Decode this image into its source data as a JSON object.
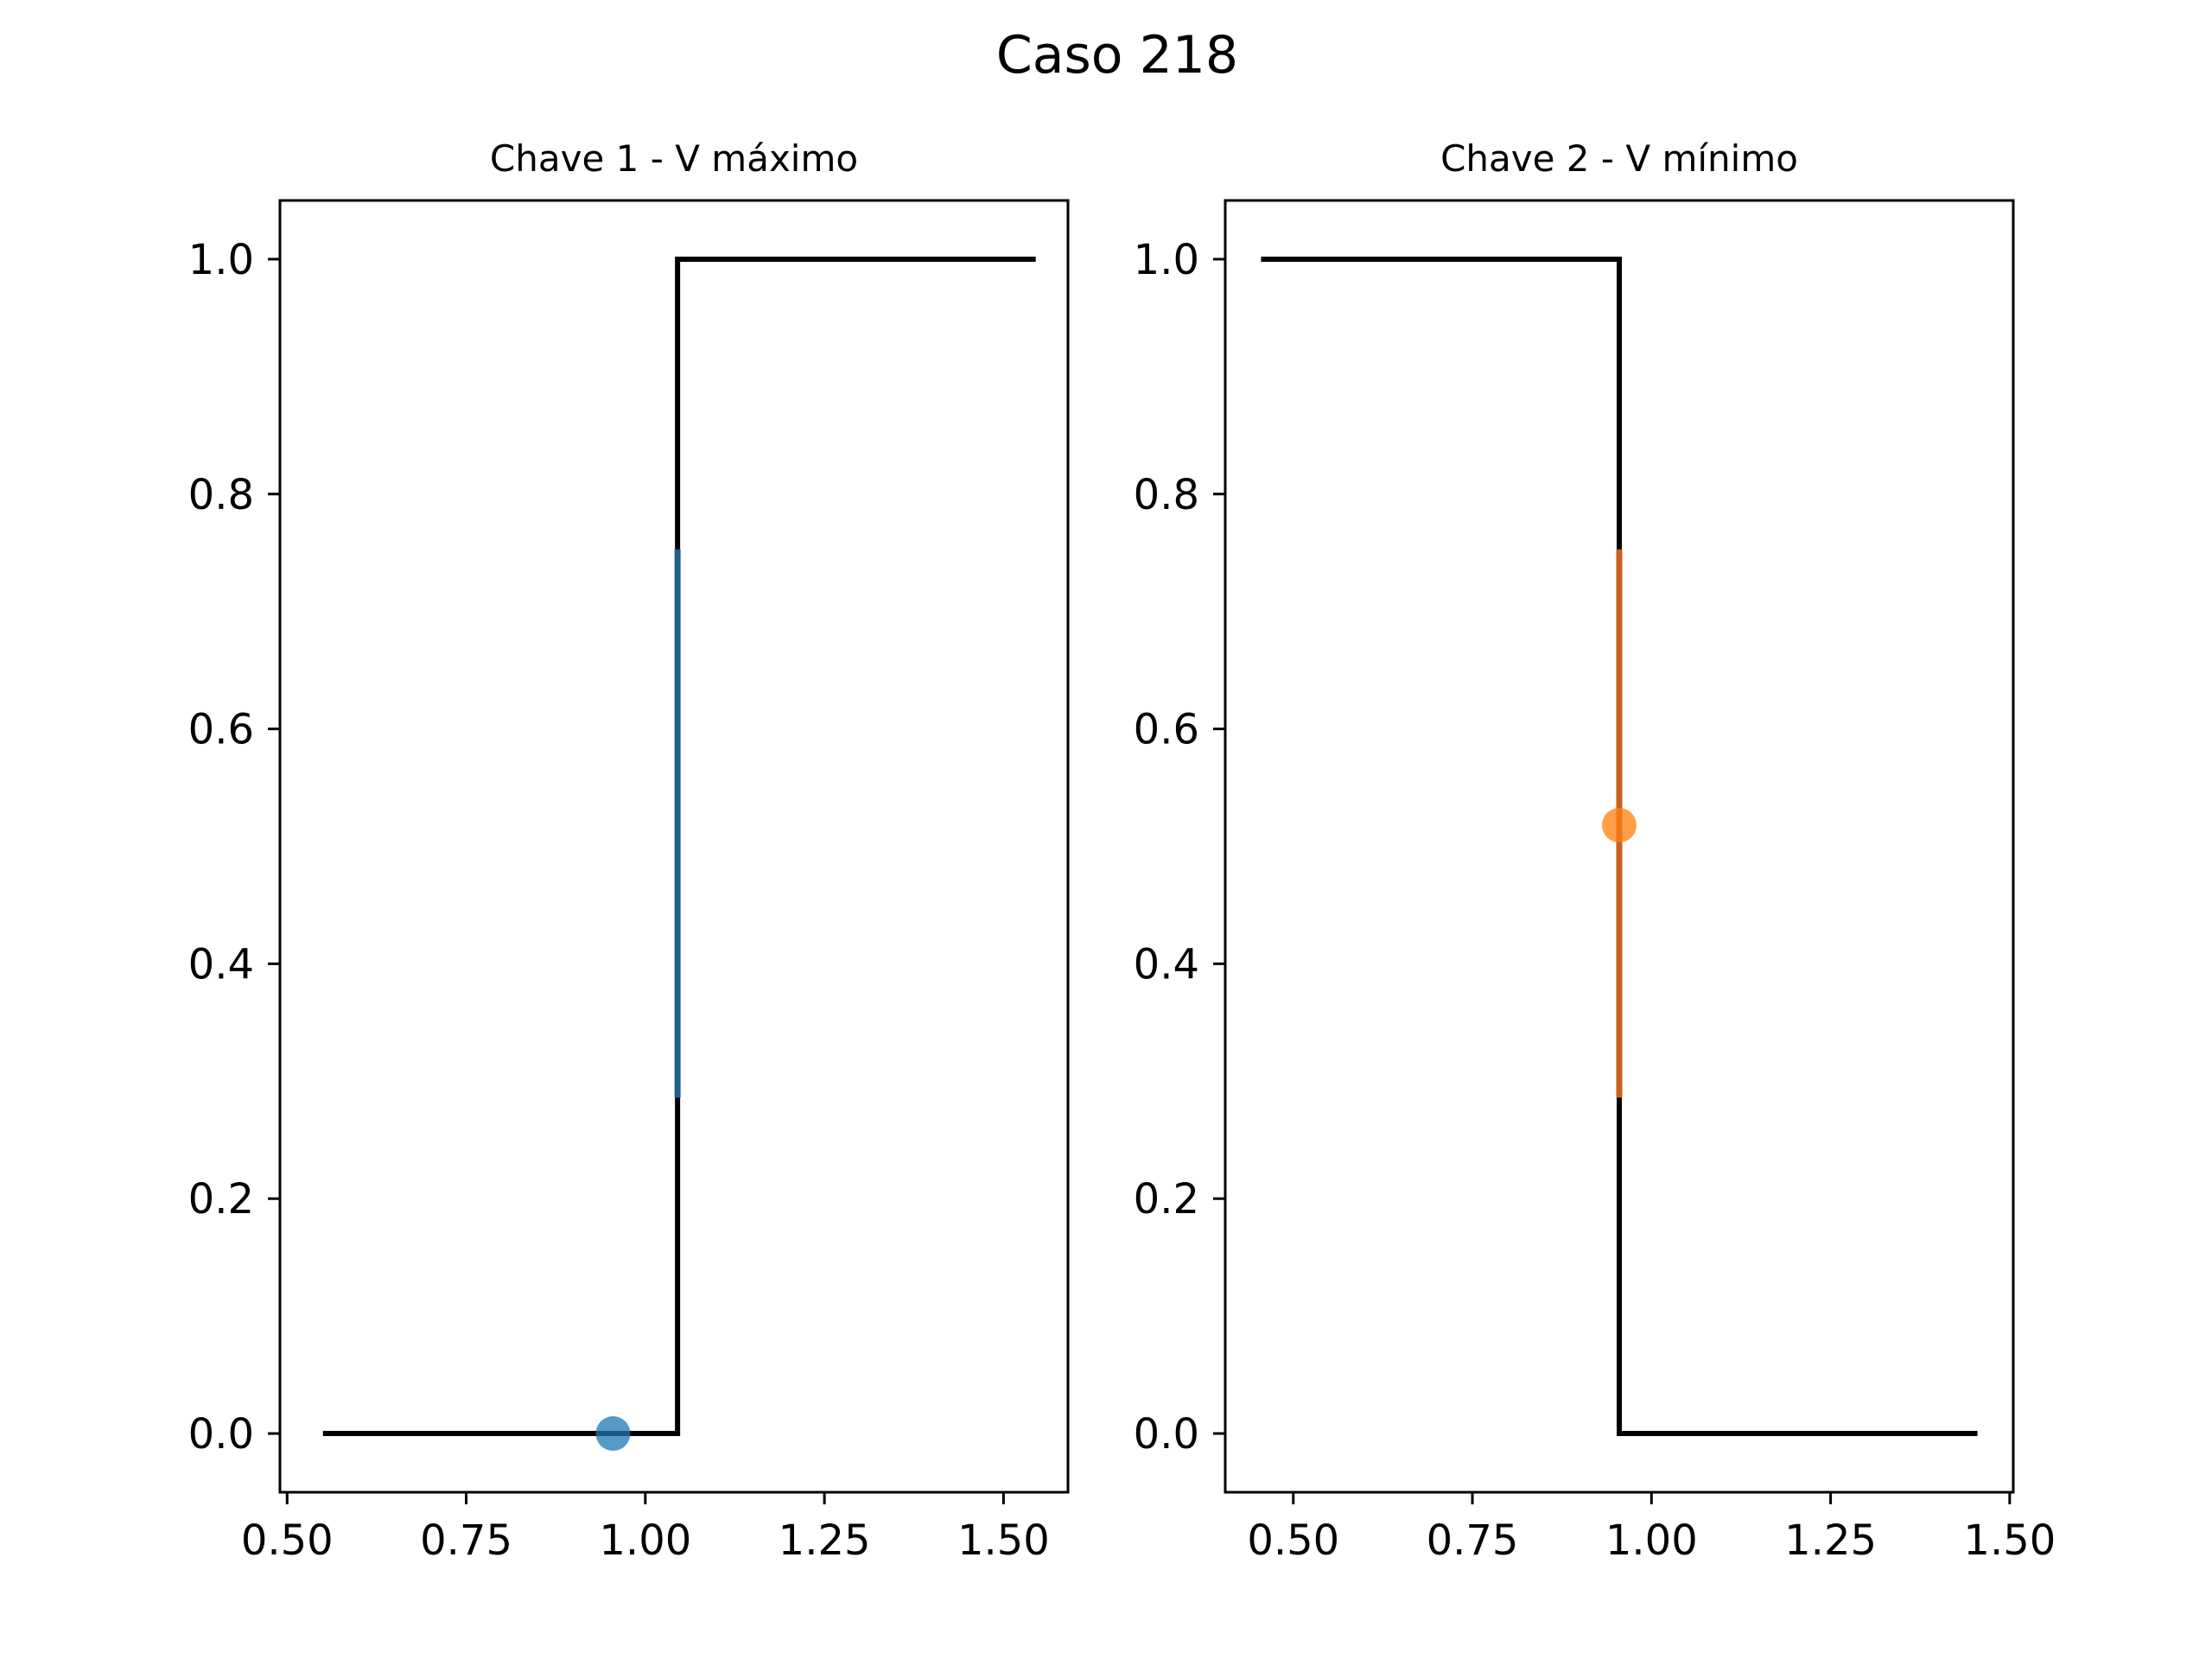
{
  "figure": {
    "title": "Caso 218"
  },
  "chart_data": [
    {
      "type": "line",
      "title": "Chave 1 - V máximo",
      "xlabel": "",
      "ylabel": "",
      "xlim": [
        0.49,
        1.59
      ],
      "ylim": [
        -0.05,
        1.05
      ],
      "xticks": [
        0.5,
        0.75,
        1.0,
        1.25,
        1.5
      ],
      "xtick_labels": [
        "0.50",
        "0.75",
        "1.00",
        "1.25",
        "1.50"
      ],
      "yticks": [
        0.0,
        0.2,
        0.4,
        0.6,
        0.8,
        1.0
      ],
      "ytick_labels": [
        "0.0",
        "0.2",
        "0.4",
        "0.6",
        "0.8",
        "1.0"
      ],
      "grid": false,
      "step_line": {
        "x": [
          0.55,
          1.045,
          1.045,
          1.545
        ],
        "y": [
          0.0,
          0.0,
          1.0,
          1.0
        ],
        "color": "#000000"
      },
      "band": {
        "x": 1.045,
        "y0": 0.286,
        "y1": 0.753,
        "color": "#1f5f8b"
      },
      "point": {
        "x": 0.955,
        "y": 0.0,
        "color": "#1f77b4"
      }
    },
    {
      "type": "line",
      "title": "Chave 2 - V mínimo",
      "xlabel": "",
      "ylabel": "",
      "xlim": [
        0.405,
        1.505
      ],
      "ylim": [
        -0.05,
        1.05
      ],
      "xticks": [
        0.5,
        0.75,
        1.0,
        1.25,
        1.5
      ],
      "xtick_labels": [
        "0.50",
        "0.75",
        "1.00",
        "1.25",
        "1.50"
      ],
      "yticks": [
        0.0,
        0.2,
        0.4,
        0.6,
        0.8,
        1.0
      ],
      "ytick_labels": [
        "0.0",
        "0.2",
        "0.4",
        "0.6",
        "0.8",
        "1.0"
      ],
      "grid": false,
      "step_line": {
        "x": [
          0.455,
          0.955,
          0.955,
          1.455
        ],
        "y": [
          1.0,
          1.0,
          0.0,
          0.0
        ],
        "color": "#000000"
      },
      "band": {
        "x": 0.955,
        "y0": 0.286,
        "y1": 0.753,
        "color": "#c8611e"
      },
      "point": {
        "x": 0.955,
        "y": 0.518,
        "color": "#ff7f0e"
      }
    }
  ]
}
